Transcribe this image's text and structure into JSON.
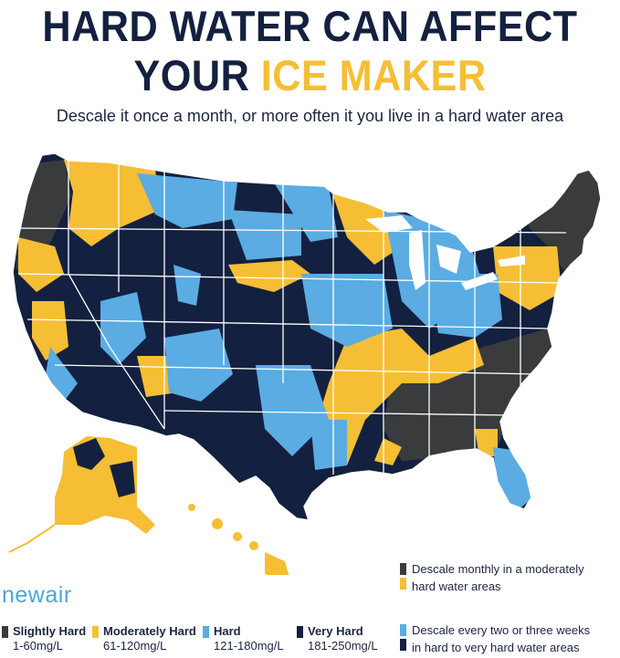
{
  "header": {
    "title_line1": "HARD WATER CAN AFFECT",
    "title_line2_prefix": "YOUR ",
    "title_line2_accent": "ICE MAKER",
    "subtitle": "Descale it once a month, or more often it you live in a hard water area"
  },
  "colors": {
    "slightly_hard": "#3a3b3d",
    "moderately_hard": "#f5be34",
    "hard": "#5aace2",
    "very_hard": "#14203f",
    "brand": "#4aa7de"
  },
  "brand": {
    "name": "newair"
  },
  "legend": [
    {
      "label": "Slightly Hard",
      "range": "1-60mg/L",
      "color": "#3a3b3d"
    },
    {
      "label": "Moderately Hard",
      "range": "61-120mg/L",
      "color": "#f5be34"
    },
    {
      "label": "Hard",
      "range": "121-180mg/L",
      "color": "#5aace2"
    },
    {
      "label": "Very Hard",
      "range": "181-250mg/L",
      "color": "#14203f"
    }
  ],
  "advice": [
    {
      "line1": "Descale monthly in a moderately",
      "line2": "hard water areas"
    },
    {
      "line1": "Descale every two or three weeks",
      "line2": "in hard to very hard water areas"
    }
  ]
}
